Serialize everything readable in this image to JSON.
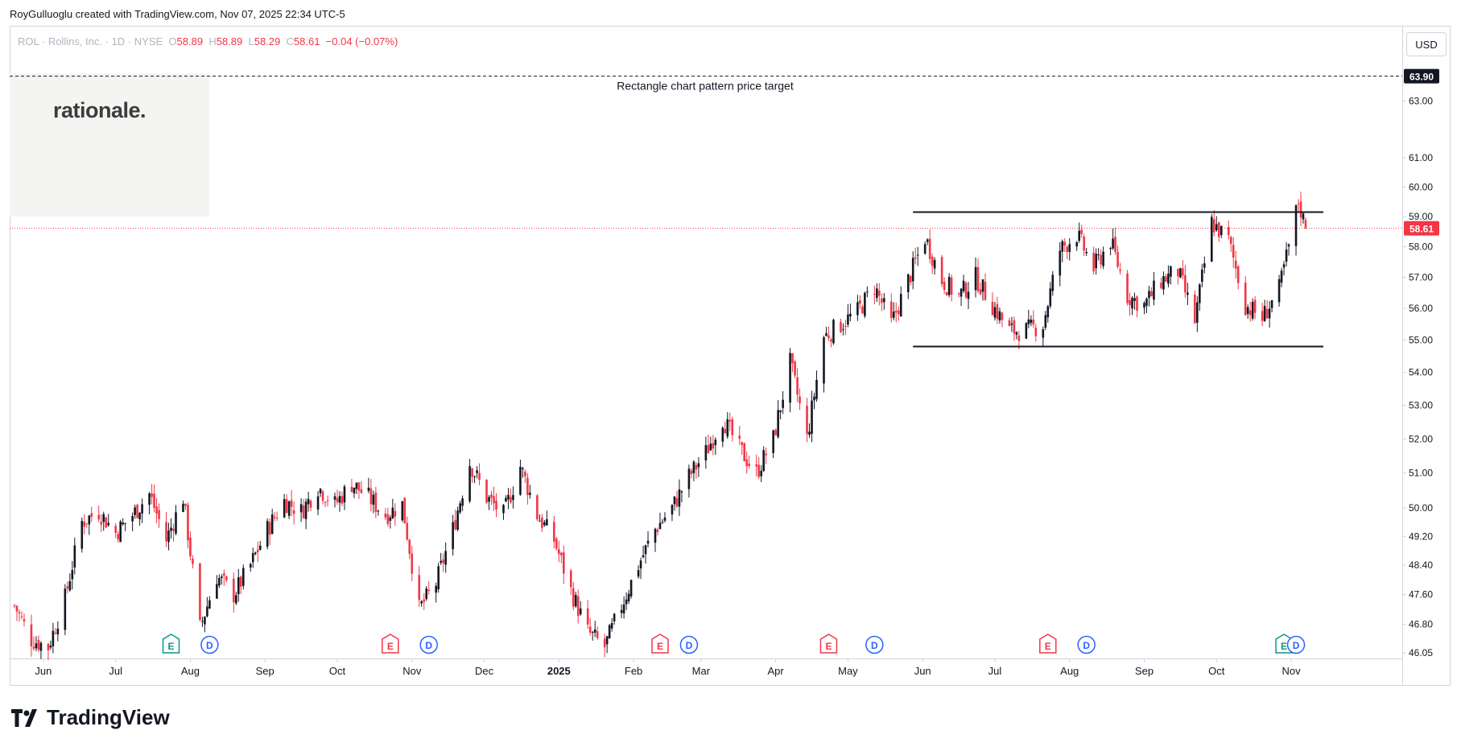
{
  "header": {
    "attribution": "RoyGulluoglu created with TradingView.com, Nov 07, 2025 22:34 UTC-5"
  },
  "symbol": {
    "ticker": "ROL",
    "name": "Rollins, Inc.",
    "interval": "1D",
    "exchange": "NYSE",
    "open_label": "O",
    "open": "58.89",
    "high_label": "H",
    "high": "58.89",
    "low_label": "L",
    "low": "58.29",
    "close_label": "C",
    "close": "58.61",
    "change": "−0.04 (−0.07%)"
  },
  "watermark": {
    "text": "rationale."
  },
  "currency_button": "USD",
  "footer": {
    "brand": "TradingView"
  },
  "colors": {
    "up": "#131722",
    "down": "#f23645",
    "accent_red": "#f23645",
    "earnings_green": "#089981",
    "dividend_blue": "#2962ff"
  },
  "chart_data": {
    "type": "candlestick",
    "title": "",
    "xlabel": "",
    "ylabel": "",
    "ylim": [
      46.05,
      64.8
    ],
    "y_scale": "log",
    "grid": false,
    "y_ticks": [
      "63.00",
      "61.00",
      "60.00",
      "59.00",
      "58.00",
      "57.00",
      "56.00",
      "55.00",
      "54.00",
      "53.00",
      "52.00",
      "51.00",
      "50.00",
      "49.20",
      "48.40",
      "47.60",
      "46.80",
      "46.05"
    ],
    "x_ticks": [
      "Jun",
      "Jul",
      "Aug",
      "Sep",
      "Oct",
      "Nov",
      "Dec",
      "2025",
      "Feb",
      "Mar",
      "Apr",
      "May",
      "Jun",
      "Jul",
      "Aug",
      "Sep",
      "Oct",
      "Nov"
    ],
    "last_price": {
      "value": 58.61,
      "label": "58.61"
    },
    "price_target": {
      "value": 63.9,
      "label": "63.90",
      "annotation": "Rectangle chart pattern price target"
    },
    "rectangle_pattern": {
      "resistance": 59.15,
      "support": 54.8,
      "from": "2025-05-28",
      "to": "2025-11-07"
    },
    "close_path": [
      [
        "2024-05-20",
        47.3
      ],
      [
        "2024-05-27",
        46.4
      ],
      [
        "2024-06-03",
        46.2
      ],
      [
        "2024-06-10",
        47.5
      ],
      [
        "2024-06-17",
        49.6
      ],
      [
        "2024-06-24",
        49.9
      ],
      [
        "2024-07-01",
        49.3
      ],
      [
        "2024-07-08",
        49.8
      ],
      [
        "2024-07-15",
        50.4
      ],
      [
        "2024-07-22",
        49.1
      ],
      [
        "2024-07-29",
        50.3
      ],
      [
        "2024-08-05",
        46.7
      ],
      [
        "2024-08-12",
        48.1
      ],
      [
        "2024-08-19",
        47.6
      ],
      [
        "2024-08-26",
        48.4
      ],
      [
        "2024-09-02",
        49.4
      ],
      [
        "2024-09-09",
        50.2
      ],
      [
        "2024-09-16",
        49.9
      ],
      [
        "2024-09-23",
        50.6
      ],
      [
        "2024-09-30",
        50.1
      ],
      [
        "2024-10-07",
        50.7
      ],
      [
        "2024-10-14",
        50.3
      ],
      [
        "2024-10-21",
        49.8
      ],
      [
        "2024-10-28",
        50.1
      ],
      [
        "2024-11-04",
        47.2
      ],
      [
        "2024-11-11",
        47.9
      ],
      [
        "2024-11-18",
        49.4
      ],
      [
        "2024-11-25",
        51.3
      ],
      [
        "2024-12-02",
        50.3
      ],
      [
        "2024-12-09",
        49.8
      ],
      [
        "2024-12-16",
        51.2
      ],
      [
        "2024-12-23",
        49.8
      ],
      [
        "2024-12-30",
        49.1
      ],
      [
        "2025-01-06",
        47.7
      ],
      [
        "2025-01-13",
        46.6
      ],
      [
        "2025-01-20",
        46.2
      ],
      [
        "2025-01-27",
        47.3
      ],
      [
        "2025-02-03",
        48.4
      ],
      [
        "2025-02-10",
        49.4
      ],
      [
        "2025-02-17",
        50.0
      ],
      [
        "2025-02-24",
        50.9
      ],
      [
        "2025-03-03",
        51.6
      ],
      [
        "2025-03-10",
        52.6
      ],
      [
        "2025-03-17",
        51.7
      ],
      [
        "2025-03-24",
        51.0
      ],
      [
        "2025-03-31",
        52.0
      ],
      [
        "2025-04-07",
        54.3
      ],
      [
        "2025-04-14",
        52.0
      ],
      [
        "2025-04-21",
        55.1
      ],
      [
        "2025-04-28",
        55.5
      ],
      [
        "2025-05-05",
        55.9
      ],
      [
        "2025-05-12",
        56.7
      ],
      [
        "2025-05-19",
        55.5
      ],
      [
        "2025-05-26",
        56.9
      ],
      [
        "2025-06-02",
        58.3
      ],
      [
        "2025-06-09",
        56.9
      ],
      [
        "2025-06-16",
        56.4
      ],
      [
        "2025-06-23",
        57.0
      ],
      [
        "2025-06-30",
        56.1
      ],
      [
        "2025-07-07",
        55.3
      ],
      [
        "2025-07-14",
        55.3
      ],
      [
        "2025-07-21",
        55.5
      ],
      [
        "2025-07-28",
        57.9
      ],
      [
        "2025-08-04",
        58.4
      ],
      [
        "2025-08-11",
        57.3
      ],
      [
        "2025-08-18",
        58.2
      ],
      [
        "2025-08-25",
        56.4
      ],
      [
        "2025-09-01",
        56.1
      ],
      [
        "2025-09-08",
        56.9
      ],
      [
        "2025-09-15",
        57.2
      ],
      [
        "2025-09-22",
        55.6
      ],
      [
        "2025-09-29",
        58.8
      ],
      [
        "2025-10-06",
        58.2
      ],
      [
        "2025-10-13",
        56.1
      ],
      [
        "2025-10-20",
        55.7
      ],
      [
        "2025-10-27",
        56.6
      ],
      [
        "2025-10-31",
        58.0
      ],
      [
        "2025-11-04",
        59.5
      ],
      [
        "2025-11-07",
        58.61
      ]
    ],
    "events": [
      {
        "type": "earnings",
        "label": "E",
        "date": "2024-07-24",
        "color": "#089981"
      },
      {
        "type": "dividend",
        "label": "D",
        "date": "2024-08-09"
      },
      {
        "type": "earnings",
        "label": "E",
        "date": "2024-10-23",
        "color": "#f23645"
      },
      {
        "type": "dividend",
        "label": "D",
        "date": "2024-11-08"
      },
      {
        "type": "earnings",
        "label": "E",
        "date": "2025-02-12",
        "color": "#f23645"
      },
      {
        "type": "dividend",
        "label": "D",
        "date": "2025-02-24"
      },
      {
        "type": "earnings",
        "label": "E",
        "date": "2025-04-23",
        "color": "#f23645"
      },
      {
        "type": "dividend",
        "label": "D",
        "date": "2025-05-12"
      },
      {
        "type": "earnings",
        "label": "E",
        "date": "2025-07-23",
        "color": "#f23645"
      },
      {
        "type": "dividend",
        "label": "D",
        "date": "2025-08-08"
      },
      {
        "type": "earnings",
        "label": "E",
        "date": "2025-10-29",
        "color": "#089981"
      },
      {
        "type": "dividend",
        "label": "D",
        "date": "2025-11-03"
      }
    ]
  }
}
